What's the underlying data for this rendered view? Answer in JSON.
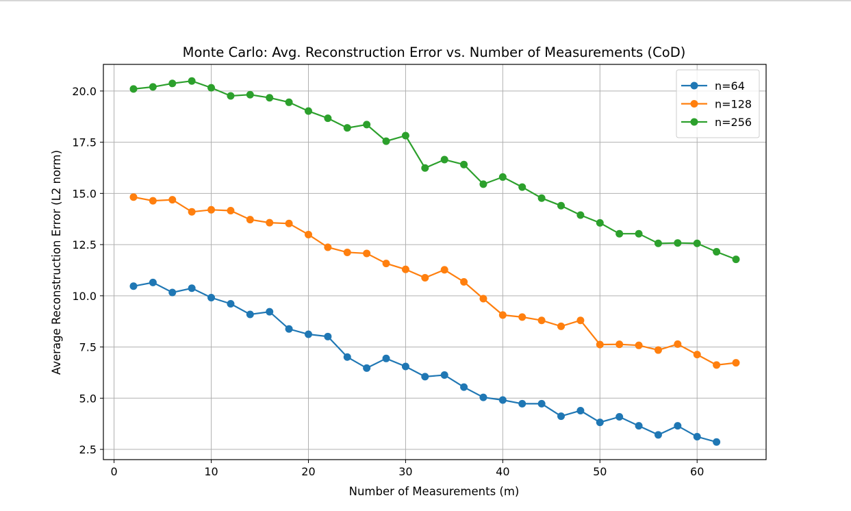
{
  "chart_data": {
    "type": "line",
    "title": "Monte Carlo: Avg. Reconstruction Error vs. Number of Measurements (CoD)",
    "xlabel": "Number of Measurements (m)",
    "ylabel": "Average Reconstruction Error (L2 norm)",
    "xlim": [
      -1.1,
      67.1
    ],
    "ylim": [
      2.0,
      21.3
    ],
    "xticks": [
      0,
      10,
      20,
      30,
      40,
      50,
      60
    ],
    "yticks": [
      2.5,
      5.0,
      7.5,
      10.0,
      12.5,
      15.0,
      17.5,
      20.0
    ],
    "xtick_labels": [
      "0",
      "10",
      "20",
      "30",
      "40",
      "50",
      "60"
    ],
    "ytick_labels": [
      "2.5",
      "5.0",
      "7.5",
      "10.0",
      "12.5",
      "15.0",
      "17.5",
      "20.0"
    ],
    "grid": true,
    "legend_position": "top-right",
    "series": [
      {
        "name": "n=64",
        "color": "#1f77b4",
        "x": [
          2,
          4,
          6,
          8,
          10,
          12,
          14,
          16,
          18,
          20,
          22,
          24,
          26,
          28,
          30,
          32,
          34,
          36,
          38,
          40,
          42,
          44,
          46,
          48,
          50,
          52,
          54,
          56,
          58,
          60,
          62
        ],
        "values": [
          10.47,
          10.65,
          10.16,
          10.37,
          9.91,
          9.61,
          9.09,
          9.22,
          8.38,
          8.12,
          8.01,
          7.01,
          6.47,
          6.94,
          6.55,
          6.05,
          6.13,
          5.54,
          5.04,
          4.91,
          4.73,
          4.73,
          4.12,
          4.39,
          3.82,
          4.09,
          3.65,
          3.21,
          3.65,
          3.12,
          2.86
        ]
      },
      {
        "name": "n=128",
        "color": "#ff7f0e",
        "x": [
          2,
          4,
          6,
          8,
          10,
          12,
          14,
          16,
          18,
          20,
          22,
          24,
          26,
          28,
          30,
          32,
          34,
          36,
          38,
          40,
          42,
          44,
          46,
          48,
          50,
          52,
          54,
          56,
          58,
          60,
          62,
          64
        ],
        "values": [
          14.82,
          14.64,
          14.69,
          14.1,
          14.2,
          14.16,
          13.72,
          13.57,
          13.53,
          12.99,
          12.37,
          12.12,
          12.07,
          11.58,
          11.29,
          10.88,
          11.27,
          10.68,
          9.86,
          9.06,
          8.96,
          8.8,
          8.51,
          8.8,
          7.62,
          7.63,
          7.58,
          7.35,
          7.64,
          7.13,
          6.62,
          6.73
        ]
      },
      {
        "name": "n=256",
        "color": "#2ca02c",
        "x": [
          2,
          4,
          6,
          8,
          10,
          12,
          14,
          16,
          18,
          20,
          22,
          24,
          26,
          28,
          30,
          32,
          34,
          36,
          38,
          40,
          42,
          44,
          46,
          48,
          50,
          52,
          54,
          56,
          58,
          60,
          62,
          64
        ],
        "values": [
          20.1,
          20.2,
          20.37,
          20.49,
          20.16,
          19.76,
          19.82,
          19.67,
          19.45,
          19.02,
          18.67,
          18.2,
          18.36,
          17.55,
          17.82,
          16.24,
          16.65,
          16.41,
          15.45,
          15.8,
          15.31,
          14.77,
          14.4,
          13.94,
          13.56,
          13.03,
          13.03,
          12.56,
          12.58,
          12.56,
          12.15,
          11.78
        ]
      }
    ]
  }
}
